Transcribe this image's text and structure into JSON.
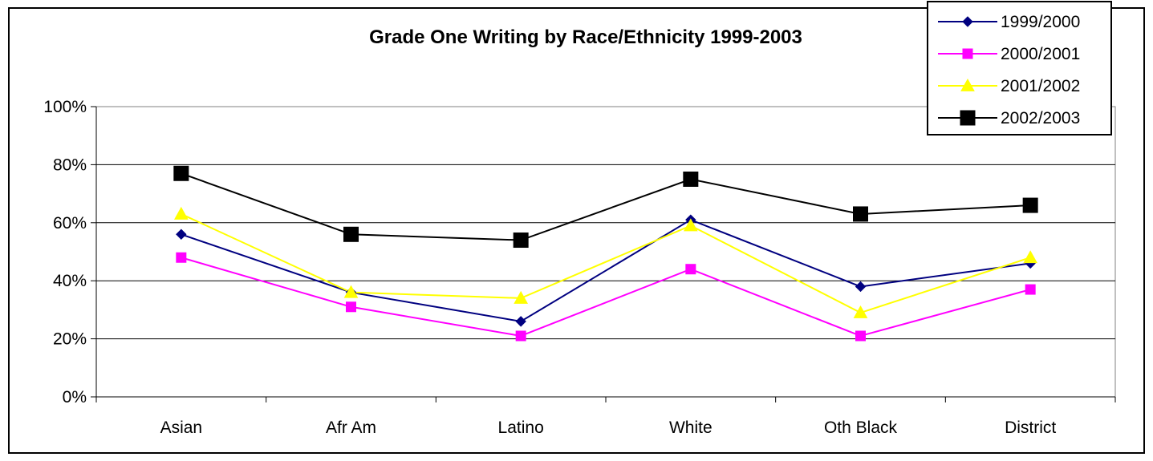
{
  "chart_data": {
    "type": "line",
    "title": "Grade One Writing by Race/Ethnicity 1999-2003",
    "xlabel": "",
    "ylabel": "",
    "categories": [
      "Asian",
      "Afr Am",
      "Latino",
      "White",
      "Oth Black",
      "District"
    ],
    "ylim": [
      0,
      100
    ],
    "y_ticks": [
      "0%",
      "20%",
      "40%",
      "60%",
      "80%",
      "100%"
    ],
    "grid": true,
    "legend_position": "top-right",
    "series": [
      {
        "name": "1999/2000",
        "values": [
          56,
          36,
          26,
          61,
          38,
          46
        ],
        "color": "#000080",
        "marker": "diamond"
      },
      {
        "name": "2000/2001",
        "values": [
          48,
          31,
          21,
          44,
          21,
          37
        ],
        "color": "#FF00FF",
        "marker": "square"
      },
      {
        "name": "2001/2002",
        "values": [
          63,
          36,
          34,
          59,
          29,
          48
        ],
        "color": "#FFFF00",
        "marker": "triangle"
      },
      {
        "name": "2002/2003",
        "values": [
          77,
          56,
          54,
          75,
          63,
          66
        ],
        "color": "#000000",
        "marker": "square-large"
      }
    ]
  }
}
